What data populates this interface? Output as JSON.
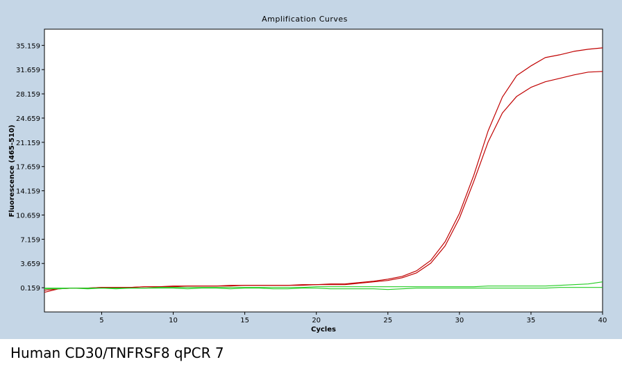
{
  "caption": "Human CD30/TNFRSF8 qPCR 7",
  "chart_data": {
    "type": "line",
    "title": "Amplification Curves",
    "xlabel": "Cycles",
    "ylabel": "Fluorescence (465-510)",
    "xlim": [
      1,
      40
    ],
    "ylim": [
      -3.341,
      37.5
    ],
    "x_ticks": [
      5,
      10,
      15,
      20,
      25,
      30,
      35,
      40
    ],
    "y_ticks": [
      0.159,
      3.659,
      7.159,
      10.659,
      14.159,
      17.659,
      21.159,
      24.659,
      28.159,
      31.659,
      35.159
    ],
    "y_tick_labels": [
      "0.159",
      "3.659",
      "7.159",
      "10.659",
      "14.159",
      "17.659",
      "21.159",
      "24.659",
      "28.159",
      "31.659",
      "35.159"
    ],
    "grid": false,
    "series": [
      {
        "color": "#c00000",
        "x": [
          1,
          2,
          3,
          4,
          5,
          6,
          7,
          8,
          9,
          10,
          11,
          12,
          13,
          14,
          15,
          16,
          17,
          18,
          19,
          20,
          21,
          22,
          23,
          24,
          25,
          26,
          27,
          28,
          29,
          30,
          31,
          32,
          33,
          34,
          35,
          36,
          37,
          38,
          39,
          40
        ],
        "values": [
          -0.5,
          0.0,
          0.1,
          0.1,
          0.2,
          0.2,
          0.2,
          0.3,
          0.3,
          0.4,
          0.4,
          0.4,
          0.4,
          0.5,
          0.5,
          0.5,
          0.5,
          0.5,
          0.6,
          0.6,
          0.7,
          0.7,
          0.9,
          1.1,
          1.4,
          1.8,
          2.6,
          4.1,
          6.8,
          10.9,
          16.4,
          22.8,
          27.7,
          30.8,
          32.2,
          33.4,
          33.8,
          34.3,
          34.6,
          34.8
        ]
      },
      {
        "color": "#c00000",
        "x": [
          1,
          2,
          3,
          4,
          5,
          6,
          7,
          8,
          9,
          10,
          11,
          12,
          13,
          14,
          15,
          16,
          17,
          18,
          19,
          20,
          21,
          22,
          23,
          24,
          25,
          26,
          27,
          28,
          29,
          30,
          31,
          32,
          33,
          34,
          35,
          36,
          37,
          38,
          39,
          40
        ],
        "values": [
          -0.2,
          0.0,
          0.1,
          0.1,
          0.2,
          0.2,
          0.2,
          0.3,
          0.3,
          0.3,
          0.4,
          0.4,
          0.4,
          0.4,
          0.5,
          0.5,
          0.5,
          0.5,
          0.5,
          0.6,
          0.6,
          0.6,
          0.8,
          1.0,
          1.2,
          1.6,
          2.3,
          3.7,
          6.2,
          10.2,
          15.5,
          21.2,
          25.4,
          27.8,
          29.1,
          29.9,
          30.4,
          30.9,
          31.3,
          31.4
        ]
      },
      {
        "color": "#22cc22",
        "x": [
          1,
          2,
          3,
          4,
          5,
          6,
          7,
          8,
          9,
          10,
          11,
          12,
          13,
          14,
          15,
          16,
          17,
          18,
          19,
          20,
          21,
          22,
          23,
          24,
          25,
          26,
          27,
          28,
          29,
          30,
          31,
          32,
          33,
          34,
          35,
          36,
          37,
          38,
          39,
          40
        ],
        "values": [
          0.0,
          0.0,
          0.1,
          0.0,
          0.1,
          0.0,
          0.1,
          0.1,
          0.1,
          0.1,
          0.0,
          0.1,
          0.1,
          0.0,
          0.1,
          0.1,
          0.0,
          0.0,
          0.1,
          0.1,
          0.0,
          0.0,
          0.0,
          0.0,
          -0.1,
          0.0,
          0.1,
          0.1,
          0.1,
          0.1,
          0.1,
          0.1,
          0.1,
          0.1,
          0.1,
          0.1,
          0.2,
          0.2,
          0.2,
          0.2
        ]
      },
      {
        "color": "#22cc22",
        "x": [
          1,
          2,
          3,
          4,
          5,
          6,
          7,
          8,
          9,
          10,
          11,
          12,
          13,
          14,
          15,
          16,
          17,
          18,
          19,
          20,
          21,
          22,
          23,
          24,
          25,
          26,
          27,
          28,
          29,
          30,
          31,
          32,
          33,
          34,
          35,
          36,
          37,
          38,
          39,
          40
        ],
        "values": [
          0.1,
          0.1,
          0.1,
          0.1,
          0.1,
          0.1,
          0.1,
          0.1,
          0.2,
          0.2,
          0.2,
          0.2,
          0.2,
          0.2,
          0.2,
          0.2,
          0.2,
          0.2,
          0.2,
          0.3,
          0.3,
          0.3,
          0.3,
          0.3,
          0.3,
          0.3,
          0.3,
          0.3,
          0.3,
          0.3,
          0.3,
          0.4,
          0.4,
          0.4,
          0.4,
          0.4,
          0.5,
          0.6,
          0.7,
          1.0
        ]
      }
    ]
  }
}
